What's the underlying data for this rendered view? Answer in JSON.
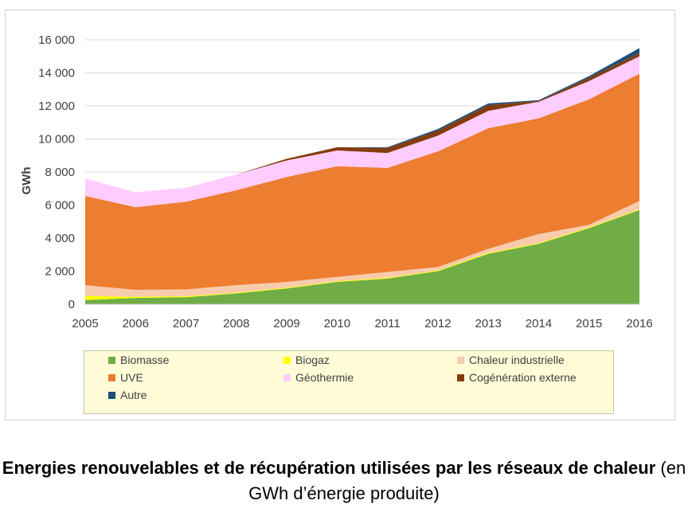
{
  "chart_data": {
    "type": "area",
    "stacked": true,
    "xlabel": "",
    "ylabel": "GWh",
    "ylim": [
      0,
      16000
    ],
    "x": [
      "2005",
      "2006",
      "2007",
      "2008",
      "2009",
      "2010",
      "2011",
      "2012",
      "2013",
      "2014",
      "2015",
      "2016"
    ],
    "yticks": [
      "0",
      "2 000",
      "4 000",
      "6 000",
      "8 000",
      "10 000",
      "12 000",
      "14 000",
      "16 000"
    ],
    "grid": "horizontal",
    "legend_position": "bottom",
    "series": [
      {
        "name": "Biomasse",
        "color": "#70ad47",
        "values": [
          250,
          380,
          420,
          650,
          950,
          1350,
          1550,
          2000,
          3050,
          3650,
          4600,
          5700
        ]
      },
      {
        "name": "Biogaz",
        "color": "#ffff00",
        "values": [
          250,
          70,
          60,
          50,
          50,
          50,
          50,
          50,
          50,
          50,
          50,
          50
        ]
      },
      {
        "name": "Chaleur industrielle",
        "color": "#f8cbad",
        "values": [
          650,
          420,
          420,
          450,
          350,
          250,
          350,
          200,
          250,
          550,
          150,
          500
        ]
      },
      {
        "name": "UVE",
        "color": "#ed7d31",
        "values": [
          5400,
          5000,
          5300,
          5750,
          6350,
          6700,
          6300,
          7000,
          7300,
          7000,
          7600,
          7700
        ]
      },
      {
        "name": "Géothermie",
        "color": "#ffccff",
        "values": [
          1050,
          900,
          850,
          950,
          1000,
          950,
          900,
          950,
          1050,
          1000,
          1100,
          1050
        ]
      },
      {
        "name": "Cogénération externe",
        "color": "#843c0c",
        "values": [
          0,
          0,
          0,
          0,
          100,
          200,
          300,
          300,
          350,
          50,
          200,
          200
        ]
      },
      {
        "name": "Autre",
        "color": "#1f4e79",
        "values": [
          0,
          0,
          0,
          0,
          0,
          0,
          50,
          100,
          100,
          50,
          100,
          300
        ]
      }
    ]
  },
  "caption": {
    "bold_part": "Energies renouvelables et de récupération utilisées par les réseaux de chaleur",
    "normal_part": " (en GWh d’énergie produite)"
  }
}
